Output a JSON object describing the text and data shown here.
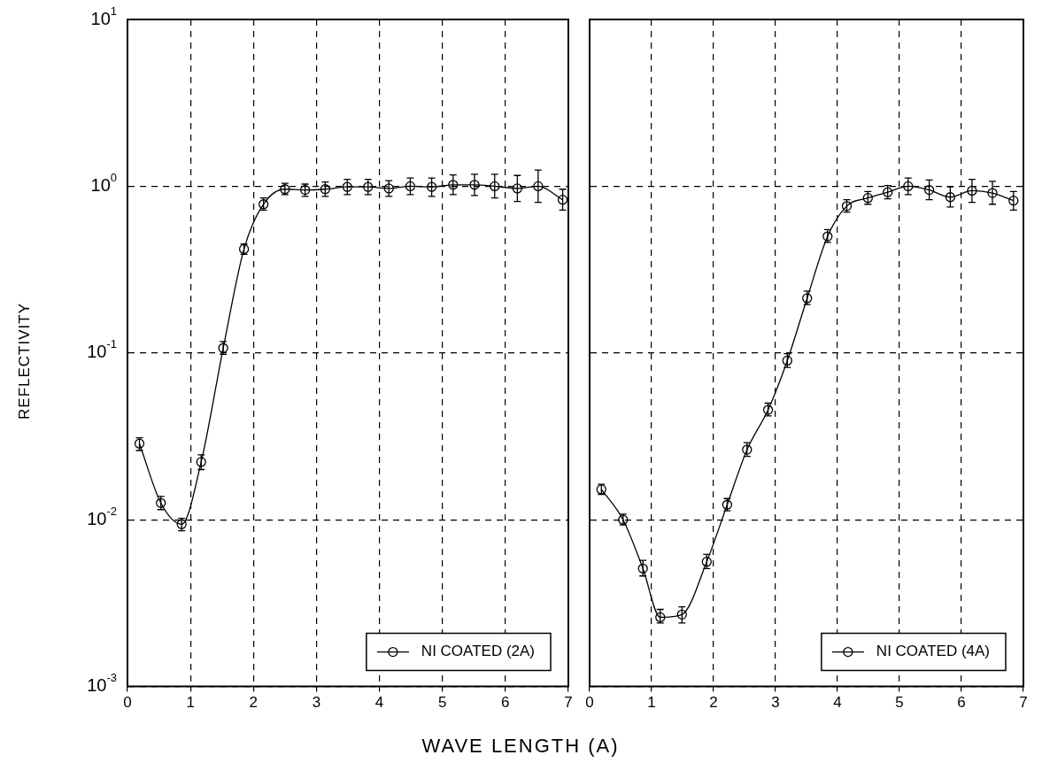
{
  "chart_data": [
    {
      "type": "line",
      "ylabel": "REFLECTIVITY",
      "xlabel": "WAVE LENGTH (A)",
      "log": "y",
      "grid": true,
      "marker": "circle",
      "line_style": "solid",
      "legend": "bottom right",
      "xlim": [
        0,
        7
      ],
      "xticks": [
        0,
        1,
        2,
        3,
        4,
        5,
        6,
        7
      ],
      "ylim": [
        0.001,
        10
      ],
      "yticks": [
        {
          "value": 0.001,
          "label": "10$^{-3}$"
        },
        {
          "value": 0.01,
          "label": "10$^{-2}$"
        },
        {
          "value": 0.1,
          "label": "10$^{-1}$"
        },
        {
          "value": 1,
          "label": "10$^{0}$"
        },
        {
          "value": 10,
          "label": "10$^{1}$"
        }
      ],
      "x": [
        0.19,
        0.53,
        0.86,
        1.17,
        1.52,
        1.85,
        2.16,
        2.5,
        2.82,
        3.14,
        3.49,
        3.82,
        4.15,
        4.49,
        4.83,
        5.17,
        5.51,
        5.83,
        6.19,
        6.52,
        6.91
      ],
      "series": [
        {
          "name": "NI COATED (2A)",
          "color": "#000000",
          "values": [
            0.0286,
            0.0126,
            0.0094,
            0.0222,
            0.107,
            0.42,
            0.78,
            0.96,
            0.95,
            0.96,
            0.99,
            0.99,
            0.97,
            1.0,
            0.99,
            1.02,
            1.02,
            1.0,
            0.97,
            1.0,
            0.83
          ],
          "errors": [
            [
              0.026,
              0.031
            ],
            [
              0.0115,
              0.0138
            ],
            [
              0.0086,
              0.0102
            ],
            [
              0.02,
              0.0245
            ],
            [
              0.098,
              0.117
            ],
            [
              0.39,
              0.45
            ],
            [
              0.72,
              0.85
            ],
            [
              0.89,
              1.04
            ],
            [
              0.87,
              1.03
            ],
            [
              0.87,
              1.06
            ],
            [
              0.89,
              1.1
            ],
            [
              0.89,
              1.1
            ],
            [
              0.87,
              1.08
            ],
            [
              0.89,
              1.12
            ],
            [
              0.87,
              1.12
            ],
            [
              0.89,
              1.17
            ],
            [
              0.88,
              1.18
            ],
            [
              0.85,
              1.18
            ],
            [
              0.81,
              1.16
            ],
            [
              0.8,
              1.25
            ],
            [
              0.72,
              0.96
            ]
          ]
        }
      ]
    },
    {
      "type": "line",
      "log": "y",
      "grid": true,
      "marker": "circle",
      "line_style": "solid",
      "legend": "bottom right",
      "tick_labels": "x",
      "xlim": [
        0,
        7
      ],
      "xticks": [
        0,
        1,
        2,
        3,
        4,
        5,
        6,
        7
      ],
      "ylim": [
        0.001,
        10
      ],
      "yticks": [
        {
          "value": 0.001,
          "label": null
        },
        {
          "value": 0.01,
          "label": null
        },
        {
          "value": 0.1,
          "label": null
        },
        {
          "value": 1,
          "label": null
        },
        {
          "value": 10,
          "label": null
        }
      ],
      "x": [
        0.19,
        0.54,
        0.86,
        1.14,
        1.49,
        1.89,
        2.22,
        2.54,
        2.88,
        3.19,
        3.51,
        3.84,
        4.15,
        4.49,
        4.81,
        5.14,
        5.48,
        5.82,
        6.17,
        6.5,
        6.84
      ],
      "series": [
        {
          "name": "NI COATED (4A)",
          "color": "#000000",
          "values": [
            0.0152,
            0.01,
            0.0051,
            0.0026,
            0.0027,
            0.0056,
            0.0123,
            0.0263,
            0.0456,
            0.09,
            0.213,
            0.5,
            0.76,
            0.85,
            0.92,
            1.0,
            0.95,
            0.86,
            0.94,
            0.91,
            0.82
          ],
          "errors": [
            [
              0.0142,
              0.0163
            ],
            [
              0.0093,
              0.0108
            ],
            [
              0.0046,
              0.0057
            ],
            [
              0.0024,
              0.0029
            ],
            [
              0.0024,
              0.003
            ],
            [
              0.0051,
              0.0062
            ],
            [
              0.0113,
              0.0134
            ],
            [
              0.024,
              0.029
            ],
            [
              0.042,
              0.05
            ],
            [
              0.082,
              0.099
            ],
            [
              0.195,
              0.235
            ],
            [
              0.46,
              0.55
            ],
            [
              0.7,
              0.83
            ],
            [
              0.78,
              0.93
            ],
            [
              0.84,
              1.01
            ],
            [
              0.89,
              1.12
            ],
            [
              0.83,
              1.09
            ],
            [
              0.75,
              0.99
            ],
            [
              0.8,
              1.1
            ],
            [
              0.78,
              1.07
            ],
            [
              0.72,
              0.93
            ]
          ]
        }
      ]
    }
  ]
}
